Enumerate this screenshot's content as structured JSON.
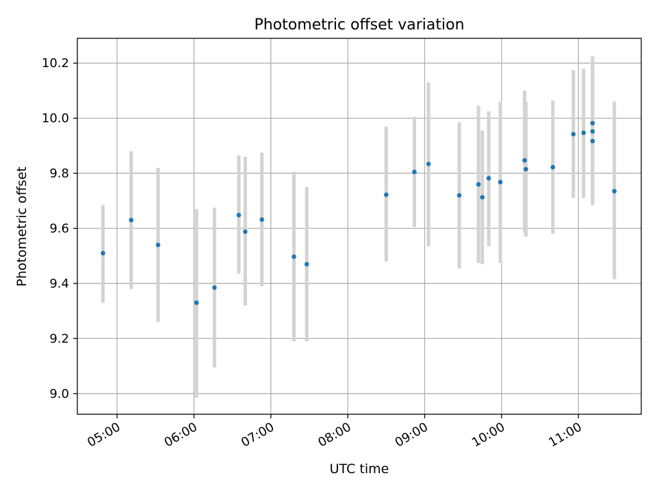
{
  "chart_data": {
    "type": "scatter",
    "title": "Photometric offset variation",
    "xlabel": "UTC time",
    "ylabel": "Photometric offset",
    "xlim": [
      "04:29",
      "11:49"
    ],
    "ylim": [
      8.925,
      10.29
    ],
    "grid": true,
    "x_ticks": [
      "05:00",
      "06:00",
      "07:00",
      "08:00",
      "09:00",
      "10:00",
      "11:00"
    ],
    "y_ticks": [
      "9.0",
      "9.2",
      "9.4",
      "9.6",
      "9.8",
      "10.0",
      "10.2"
    ],
    "colors": {
      "point": "#1f77b4",
      "errorbar": "#d3d3d3",
      "grid": "#b0b0b0"
    },
    "series": [
      {
        "points": [
          {
            "x": "04:49",
            "y": 9.51,
            "ylow": 9.33,
            "yhigh": 9.685
          },
          {
            "x": "05:11",
            "y": 9.63,
            "ylow": 9.38,
            "yhigh": 9.88
          },
          {
            "x": "05:32",
            "y": 9.54,
            "ylow": 9.26,
            "yhigh": 9.82
          },
          {
            "x": "06:02",
            "y": 9.33,
            "ylow": 8.985,
            "yhigh": 9.67
          },
          {
            "x": "06:16",
            "y": 9.385,
            "ylow": 9.095,
            "yhigh": 9.675
          },
          {
            "x": "06:35",
            "y": 9.648,
            "ylow": 9.435,
            "yhigh": 9.865
          },
          {
            "x": "06:40",
            "y": 9.588,
            "ylow": 9.32,
            "yhigh": 9.86
          },
          {
            "x": "06:53",
            "y": 9.632,
            "ylow": 9.39,
            "yhigh": 9.875
          },
          {
            "x": "07:18",
            "y": 9.497,
            "ylow": 9.19,
            "yhigh": 9.805
          },
          {
            "x": "07:28",
            "y": 9.47,
            "ylow": 9.19,
            "yhigh": 9.75
          },
          {
            "x": "08:30",
            "y": 9.722,
            "ylow": 9.48,
            "yhigh": 9.97
          },
          {
            "x": "08:52",
            "y": 9.805,
            "ylow": 9.605,
            "yhigh": 10.005
          },
          {
            "x": "09:03",
            "y": 9.834,
            "ylow": 9.535,
            "yhigh": 10.13
          },
          {
            "x": "09:27",
            "y": 9.72,
            "ylow": 9.455,
            "yhigh": 9.985
          },
          {
            "x": "09:42",
            "y": 9.76,
            "ylow": 9.475,
            "yhigh": 10.045
          },
          {
            "x": "09:45",
            "y": 9.713,
            "ylow": 9.47,
            "yhigh": 9.955
          },
          {
            "x": "09:50",
            "y": 9.782,
            "ylow": 9.535,
            "yhigh": 10.025
          },
          {
            "x": "09:59",
            "y": 9.768,
            "ylow": 9.475,
            "yhigh": 10.06
          },
          {
            "x": "10:18",
            "y": 9.847,
            "ylow": 9.585,
            "yhigh": 10.1
          },
          {
            "x": "10:19",
            "y": 9.815,
            "ylow": 9.57,
            "yhigh": 10.06
          },
          {
            "x": "10:40",
            "y": 9.822,
            "ylow": 9.58,
            "yhigh": 10.065
          },
          {
            "x": "10:56",
            "y": 9.942,
            "ylow": 9.71,
            "yhigh": 10.175
          },
          {
            "x": "11:04",
            "y": 9.947,
            "ylow": 9.71,
            "yhigh": 10.18
          },
          {
            "x": "11:11",
            "y": 9.982,
            "ylow": 9.685,
            "yhigh": 10.225
          },
          {
            "x": "11:11",
            "y": 9.952,
            "ylow": 9.7,
            "yhigh": 10.2
          },
          {
            "x": "11:11",
            "y": 9.917,
            "ylow": 9.69,
            "yhigh": 10.145
          },
          {
            "x": "11:28",
            "y": 9.735,
            "ylow": 9.415,
            "yhigh": 10.06
          }
        ]
      }
    ]
  }
}
